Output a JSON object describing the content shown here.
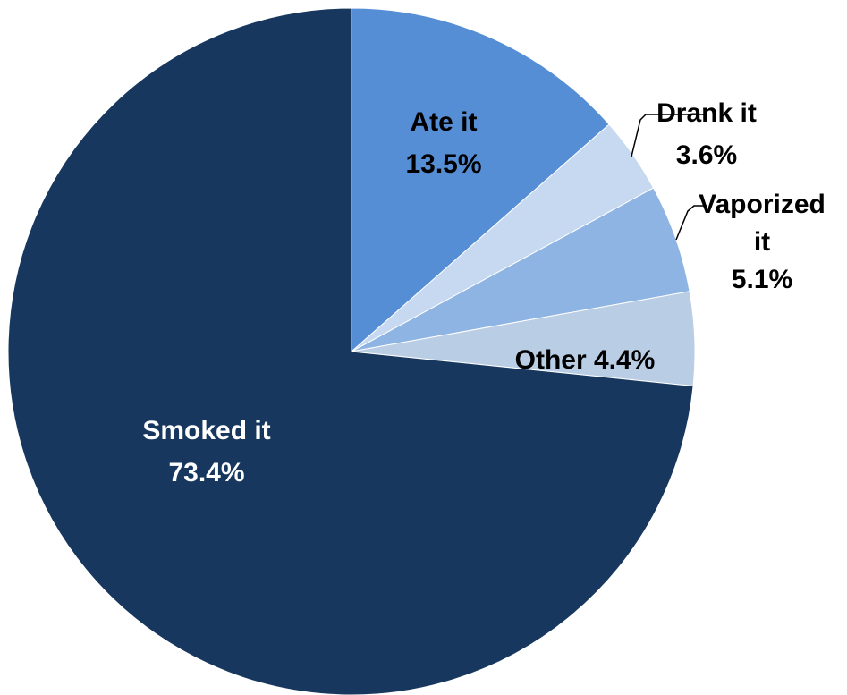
{
  "chart_data": {
    "type": "pie",
    "start_angle_deg": 0,
    "direction": "clockwise",
    "slices": [
      {
        "label_lines": [
          "Ate it"
        ],
        "label_pct": "13.5%",
        "value": 13.5,
        "color": "#558ED5",
        "label_color": "#000000"
      },
      {
        "label_lines": [
          "Drank it"
        ],
        "label_pct": "3.6%",
        "value": 3.6,
        "color": "#C6D9F1",
        "label_color": "#000000"
      },
      {
        "label_lines": [
          "Vaporized",
          "it"
        ],
        "label_pct": "5.1%",
        "value": 5.1,
        "color": "#8EB4E3",
        "label_color": "#000000"
      },
      {
        "label_lines": [
          "Other 4.4%"
        ],
        "label_pct": "",
        "value": 4.4,
        "color": "#B9CDE5",
        "label_color": "#000000"
      },
      {
        "label_lines": [
          "Smoked it"
        ],
        "label_pct": "73.4%",
        "value": 73.4,
        "color": "#17375E",
        "label_color": "#ffffff"
      }
    ]
  }
}
